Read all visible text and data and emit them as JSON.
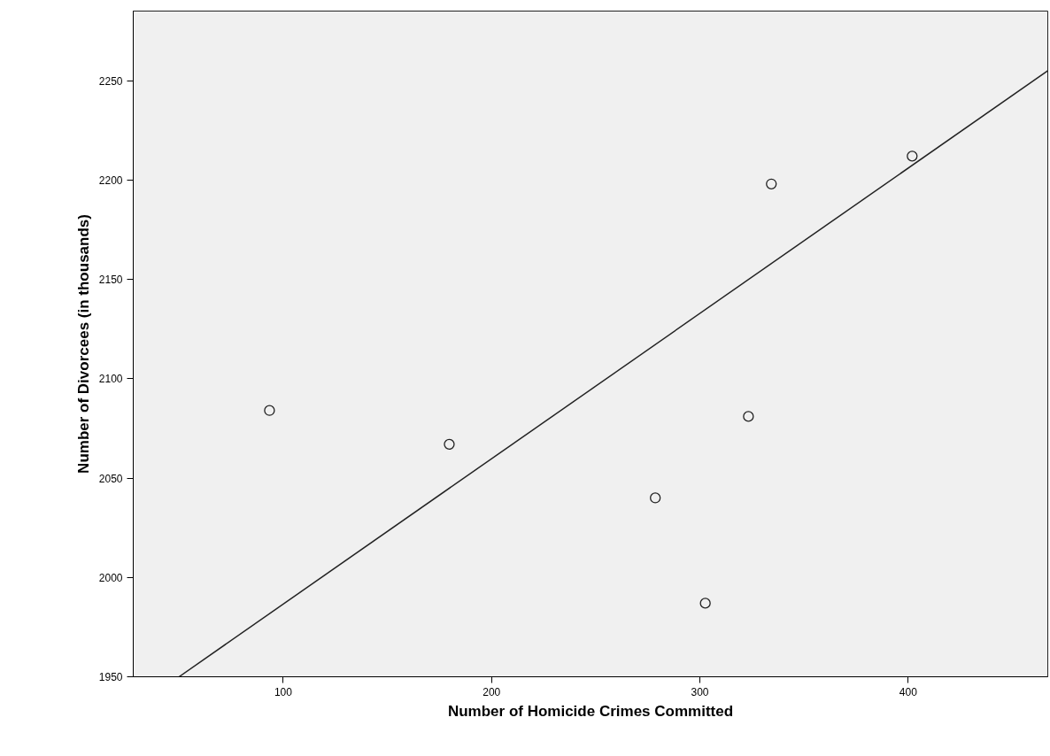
{
  "chart_data": {
    "type": "scatter",
    "xlabel": "Number of Homicide Crimes Committed",
    "ylabel": "Number of Divorcees (in thousands)",
    "xlim": [
      28,
      467
    ],
    "ylim": [
      1950,
      2285
    ],
    "xticks": [
      100,
      200,
      300,
      400
    ],
    "yticks": [
      1950,
      2000,
      2050,
      2100,
      2150,
      2200,
      2250
    ],
    "grid": false,
    "series": [
      {
        "marker": "circle",
        "color": "#222222",
        "x": [
          93.4,
          179.7,
          278.6,
          302.6,
          323.3,
          334.3,
          401.9
        ],
        "values": [
          2084,
          2067,
          2040,
          1987,
          2081,
          2198,
          2212
        ]
      },
      {
        "type": "line",
        "color": "#222222",
        "line_style": "solid",
        "x": [
          50,
          467
        ],
        "values": [
          1950,
          2255
        ]
      }
    ]
  }
}
